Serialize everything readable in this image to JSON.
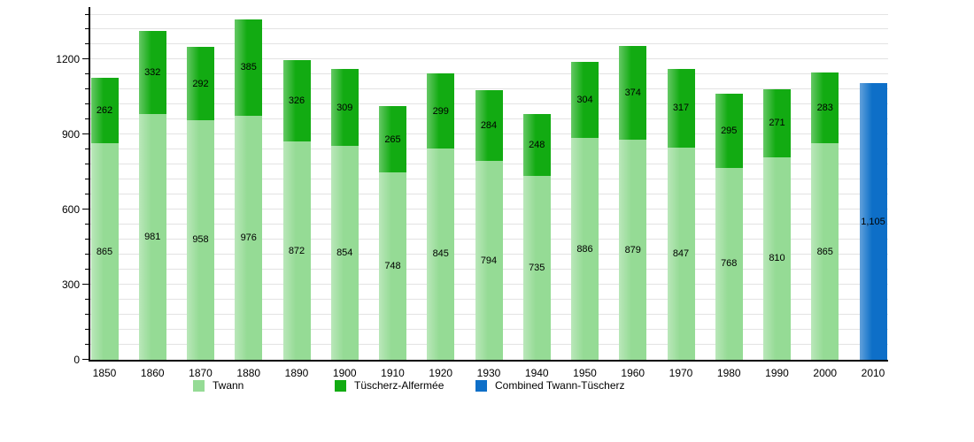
{
  "chart_data": {
    "type": "bar",
    "stacked": true,
    "title": "",
    "xlabel": "",
    "ylabel": "",
    "categories": [
      "1850",
      "1860",
      "1870",
      "1880",
      "1890",
      "1900",
      "1910",
      "1920",
      "1930",
      "1940",
      "1950",
      "1960",
      "1970",
      "1980",
      "1990",
      "2000",
      "2010"
    ],
    "series": [
      {
        "name": "Twann",
        "color": "#95DB95",
        "values": [
          865,
          981,
          958,
          976,
          872,
          854,
          748,
          845,
          794,
          735,
          886,
          879,
          847,
          768,
          810,
          865,
          null
        ]
      },
      {
        "name": "Tüscherz-Alfermée",
        "color": "#12AB12",
        "values": [
          262,
          332,
          292,
          385,
          326,
          309,
          265,
          299,
          284,
          248,
          304,
          374,
          317,
          295,
          271,
          283,
          null
        ]
      },
      {
        "name": "Combined Twann-Tüscherz",
        "color": "#0E6FC8",
        "values": [
          null,
          null,
          null,
          null,
          null,
          null,
          null,
          null,
          null,
          null,
          null,
          null,
          null,
          null,
          null,
          null,
          1105
        ]
      }
    ],
    "ylim": [
      0,
      1410
    ],
    "y_major_ticks": [
      0,
      300,
      600,
      900,
      1200
    ],
    "y_minor_step": 60,
    "grid": true,
    "gridline_color": "#e3e3e3",
    "axis_color": "#000000",
    "label_color": "#000000",
    "legend_position": "bottom"
  }
}
